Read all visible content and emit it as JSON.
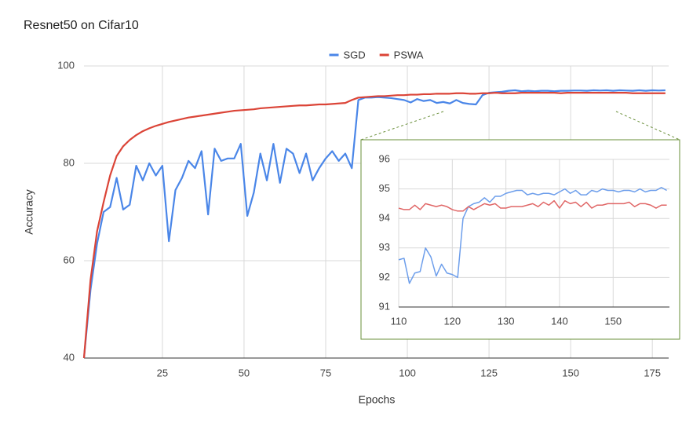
{
  "chart_data": [
    {
      "type": "line",
      "title": "Resnet50 on  Cifar10",
      "x_label": "Epochs",
      "y_label": "Accuracy",
      "x": [
        1,
        3,
        5,
        7,
        9,
        11,
        13,
        15,
        17,
        19,
        21,
        23,
        25,
        27,
        29,
        31,
        33,
        35,
        37,
        39,
        41,
        43,
        45,
        47,
        49,
        51,
        53,
        55,
        57,
        59,
        61,
        63,
        65,
        67,
        69,
        71,
        73,
        75,
        77,
        79,
        81,
        83,
        85,
        87,
        89,
        91,
        93,
        95,
        97,
        99,
        101,
        103,
        105,
        107,
        109,
        111,
        113,
        115,
        117,
        119,
        121,
        123,
        125,
        127,
        129,
        131,
        133,
        135,
        137,
        139,
        141,
        143,
        145,
        147,
        149,
        151,
        153,
        155,
        157,
        159,
        161,
        163,
        165,
        167,
        169,
        171,
        173,
        175,
        177,
        179
      ],
      "series": [
        {
          "name": "SGD",
          "color": "#4a86e8",
          "values": [
            40,
            54,
            63.5,
            70,
            71,
            77,
            70.5,
            71.5,
            79.5,
            76.5,
            80,
            77.5,
            79.5,
            64,
            74.5,
            77,
            80.5,
            79,
            82.5,
            69.5,
            83,
            80.5,
            81,
            81,
            84,
            69.2,
            74,
            82,
            76.5,
            84,
            76,
            83,
            82,
            78,
            82,
            76.5,
            79,
            81,
            82.5,
            80.5,
            82,
            79,
            93,
            93.5,
            93.5,
            93.6,
            93.5,
            93.4,
            93.2,
            93,
            92.5,
            93.2,
            92.8,
            93,
            92.4,
            92.6,
            92.3,
            93,
            92.4,
            92.2,
            92.1,
            94,
            94.5,
            94.6,
            94.7,
            94.9,
            95,
            94.8,
            94.9,
            94.8,
            94.9,
            94.9,
            94.8,
            94.9,
            94.9,
            94.95,
            94.95,
            94.9,
            95,
            94.95,
            95,
            94.9,
            95,
            94.95,
            94.9,
            95,
            94.9,
            95,
            94.95,
            95
          ]
        },
        {
          "name": "PSWA",
          "color": "#db4437",
          "values": [
            40,
            56,
            66,
            72,
            77.5,
            81.5,
            83.5,
            84.8,
            85.8,
            86.6,
            87.2,
            87.7,
            88.1,
            88.5,
            88.8,
            89.1,
            89.4,
            89.6,
            89.8,
            90,
            90.2,
            90.4,
            90.6,
            90.8,
            90.9,
            91,
            91.1,
            91.3,
            91.4,
            91.5,
            91.6,
            91.7,
            91.8,
            91.9,
            91.9,
            92,
            92.1,
            92.1,
            92.2,
            92.3,
            92.4,
            93,
            93.5,
            93.6,
            93.7,
            93.8,
            93.8,
            93.9,
            94,
            94,
            94.1,
            94.1,
            94.2,
            94.2,
            94.3,
            94.3,
            94.3,
            94.4,
            94.4,
            94.3,
            94.3,
            94.4,
            94.4,
            94.5,
            94.4,
            94.4,
            94.4,
            94.5,
            94.5,
            94.5,
            94.5,
            94.5,
            94.5,
            94.4,
            94.5,
            94.5,
            94.5,
            94.5,
            94.5,
            94.5,
            94.5,
            94.5,
            94.5,
            94.5,
            94.4,
            94.4,
            94.4,
            94.4,
            94.4,
            94.4
          ]
        }
      ],
      "xlim": [
        1,
        180
      ],
      "xticks": [
        25,
        50,
        75,
        100,
        125,
        150,
        175
      ],
      "ylim": [
        40,
        100
      ],
      "yticks": [
        40,
        60,
        80,
        100
      ],
      "grid": true,
      "legend": "top"
    },
    {
      "type": "line",
      "x": [
        110,
        111,
        112,
        113,
        114,
        115,
        116,
        117,
        118,
        119,
        120,
        121,
        122,
        123,
        124,
        125,
        126,
        127,
        128,
        129,
        130,
        131,
        132,
        133,
        134,
        135,
        136,
        137,
        138,
        139,
        140,
        141,
        142,
        143,
        144,
        145,
        146,
        147,
        148,
        149,
        150,
        151,
        152,
        153,
        154,
        155,
        156,
        157,
        158,
        159,
        160
      ],
      "series": [
        {
          "color": "#6d9eeb",
          "values": [
            92.6,
            92.65,
            91.8,
            92.15,
            92.2,
            93.0,
            92.7,
            92.05,
            92.45,
            92.15,
            92.1,
            92.0,
            94.0,
            94.4,
            94.5,
            94.55,
            94.7,
            94.55,
            94.75,
            94.75,
            94.85,
            94.9,
            94.95,
            94.95,
            94.8,
            94.85,
            94.8,
            94.85,
            94.85,
            94.8,
            94.9,
            95.0,
            94.85,
            94.95,
            94.8,
            94.8,
            94.95,
            94.9,
            95.0,
            94.95,
            94.95,
            94.9,
            94.95,
            94.95,
            94.9,
            95.0,
            94.9,
            94.95,
            94.95,
            95.05,
            94.95
          ]
        },
        {
          "color": "#e06666",
          "values": [
            94.35,
            94.3,
            94.3,
            94.45,
            94.3,
            94.5,
            94.45,
            94.4,
            94.45,
            94.4,
            94.3,
            94.25,
            94.25,
            94.4,
            94.3,
            94.4,
            94.5,
            94.45,
            94.5,
            94.35,
            94.35,
            94.4,
            94.4,
            94.4,
            94.45,
            94.5,
            94.4,
            94.55,
            94.45,
            94.6,
            94.35,
            94.6,
            94.5,
            94.55,
            94.4,
            94.55,
            94.35,
            94.45,
            94.45,
            94.5,
            94.5,
            94.5,
            94.5,
            94.55,
            94.4,
            94.5,
            94.5,
            94.45,
            94.35,
            94.45,
            94.45
          ]
        }
      ],
      "xlim": [
        110,
        160.5
      ],
      "xticks": [
        110,
        120,
        130,
        140,
        150
      ],
      "ylim": [
        91,
        96
      ],
      "yticks": [
        91,
        92,
        93,
        94,
        95,
        96
      ],
      "grid": true
    }
  ]
}
